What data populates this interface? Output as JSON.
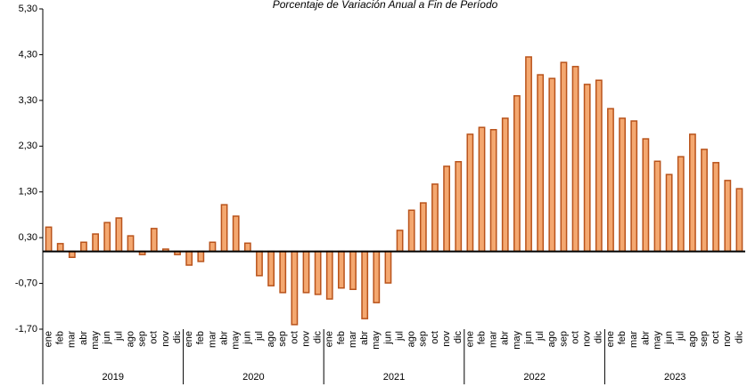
{
  "chart_data": {
    "type": "bar",
    "title": "Porcentaje de Variación Anual a Fin de Período",
    "categories": [
      "ene",
      "feb",
      "mar",
      "abr",
      "may",
      "jun",
      "jul",
      "ago",
      "sep",
      "oct",
      "nov",
      "dic",
      "ene",
      "feb",
      "mar",
      "abr",
      "may",
      "jun",
      "jul",
      "ago",
      "sep",
      "oct",
      "nov",
      "dic",
      "ene",
      "feb",
      "mar",
      "abr",
      "may",
      "jun",
      "jul",
      "ago",
      "sep",
      "oct",
      "nov",
      "dic",
      "ene",
      "feb",
      "mar",
      "abr",
      "may",
      "jun",
      "jul",
      "ago",
      "sep",
      "oct",
      "nov",
      "dic",
      "ene",
      "feb",
      "mar",
      "abr",
      "may",
      "jun",
      "jul",
      "ago",
      "sep",
      "oct",
      "nov",
      "dic"
    ],
    "years": [
      "2019",
      "2020",
      "2021",
      "2022",
      "2023"
    ],
    "values": [
      0.53,
      0.17,
      -0.13,
      0.2,
      0.38,
      0.63,
      0.73,
      0.34,
      -0.07,
      0.5,
      0.05,
      -0.07,
      -0.3,
      -0.22,
      0.2,
      1.02,
      0.77,
      0.18,
      -0.53,
      -0.75,
      -0.9,
      -1.6,
      -0.9,
      -0.94,
      -1.04,
      -0.8,
      -0.83,
      -1.47,
      -1.12,
      -0.69,
      0.46,
      0.9,
      1.06,
      1.47,
      1.86,
      1.96,
      2.56,
      2.71,
      2.66,
      2.91,
      3.4,
      4.25,
      3.86,
      3.78,
      4.13,
      4.04,
      3.65,
      3.74,
      3.12,
      2.91,
      2.85,
      2.46,
      1.97,
      1.68,
      2.07,
      2.56,
      2.23,
      1.94,
      1.55,
      1.37
    ],
    "color": "#f4a870",
    "edge_color": "#b9531b",
    "ylim": [
      -1.7,
      5.3
    ],
    "yticks": [
      {
        "value": -1.7,
        "label": "-1,70"
      },
      {
        "value": -0.7,
        "label": "-0,70"
      },
      {
        "value": 0.3,
        "label": "0,30"
      },
      {
        "value": 1.3,
        "label": "1,30"
      },
      {
        "value": 2.3,
        "label": "2,30"
      },
      {
        "value": 3.3,
        "label": "3,30"
      },
      {
        "value": 4.3,
        "label": "4,30"
      },
      {
        "value": 5.3,
        "label": "5,30"
      }
    ],
    "grid": false
  }
}
